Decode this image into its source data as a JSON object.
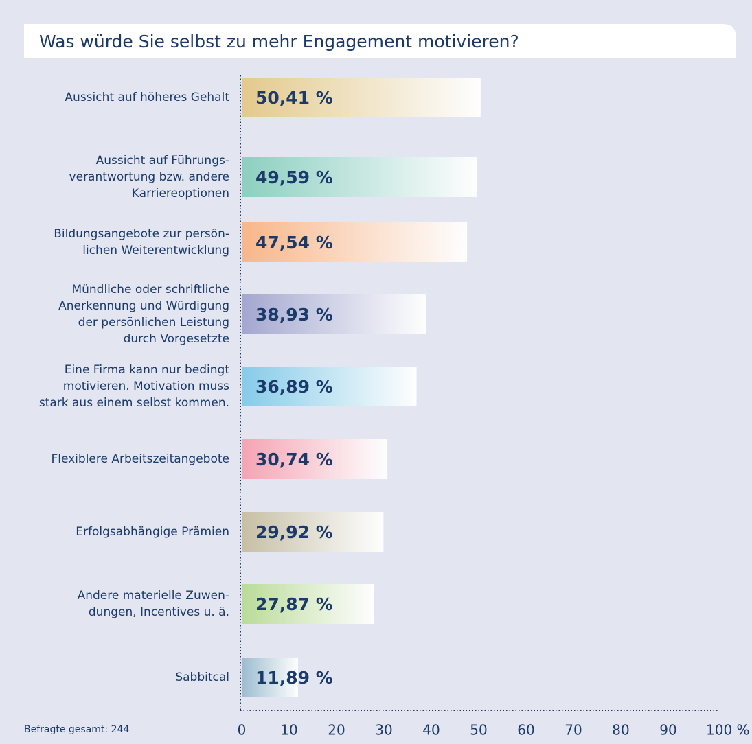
{
  "chart_data": {
    "type": "hbar",
    "title": "Was würde Sie selbst zu mehr Engagement motivieren?",
    "categories": [
      "Aussicht auf höheres Gehalt",
      "Aussicht auf Führungs-\nverantwortung bzw. andere\nKarriereoptionen",
      "Bildungsangebote zur persön-\nlichen Weiterentwicklung",
      "Mündliche oder schriftliche\nAnerkennung und Würdigung\nder persönlichen Leistung\ndurch Vorgesetzte",
      "Eine Firma kann nur bedingt\nmotivieren. Motivation muss\nstark aus einem selbst kommen.",
      "Flexiblere Arbeitszeitangebote",
      "Erfolgsabhängige Prämien",
      "Andere materielle Zuwen-\ndungen, Incentives u. ä.",
      "Sabbitcal"
    ],
    "values": [
      50.41,
      49.59,
      47.54,
      38.93,
      36.89,
      30.74,
      29.92,
      27.87,
      11.89
    ],
    "value_labels": [
      "50,41 %",
      "49,59 %",
      "47,54 %",
      "38,93 %",
      "36,89 %",
      "30,74 %",
      "29,92 %",
      "27,87 %",
      "11,89 %"
    ],
    "colors": [
      "#e3c98c",
      "#8ccfc0",
      "#f8b68a",
      "#a3a7cf",
      "#86cbe8",
      "#f5a3b2",
      "#c6bfa5",
      "#badb98",
      "#9bbccf"
    ],
    "xlim": [
      0,
      100
    ],
    "xticks": [
      0,
      10,
      20,
      30,
      40,
      50,
      60,
      70,
      80,
      90,
      {
        "value": 100,
        "label": "100 %"
      }
    ],
    "footnote": "Befragte gesamt: 244"
  }
}
